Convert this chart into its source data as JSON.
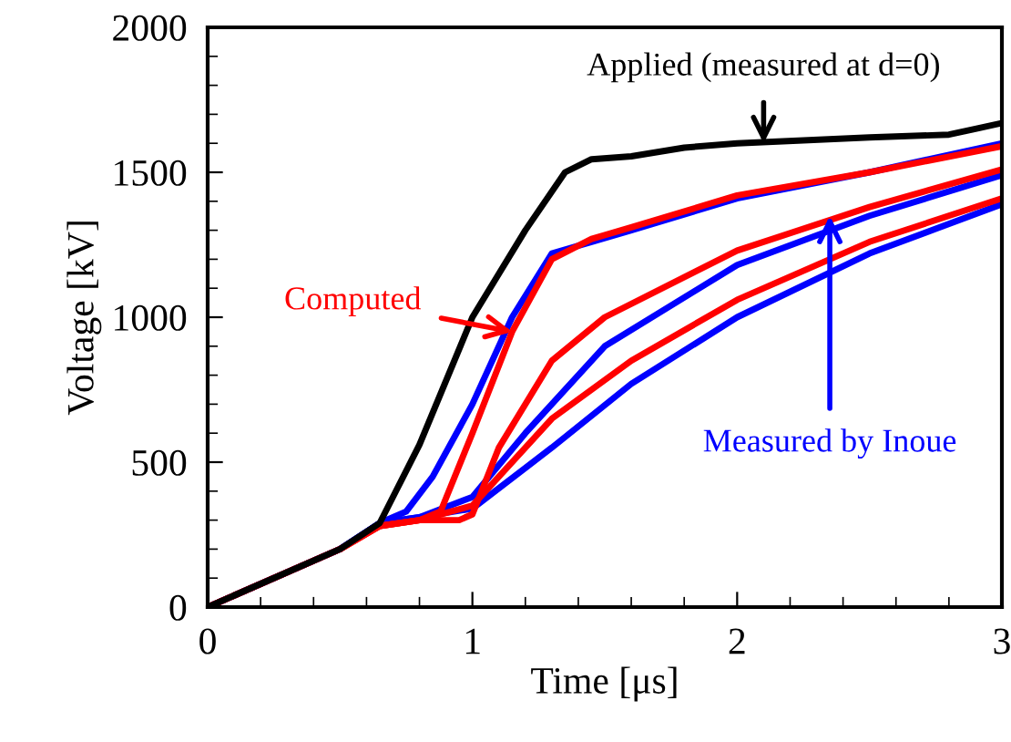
{
  "chart_data": {
    "type": "line",
    "xlabel": "Time [μs]",
    "ylabel": "Voltage [kV]",
    "xlim": [
      0,
      3
    ],
    "xticks": [
      0,
      1,
      2,
      3
    ],
    "ylim": [
      0,
      2000
    ],
    "yticks": [
      0,
      500,
      1000,
      1500,
      2000
    ],
    "grid": false,
    "legend": false,
    "marker": "none",
    "line_style": "solid",
    "series": [
      {
        "color": "#0000ff",
        "x": [
          0,
          0.5,
          0.65,
          0.75,
          0.85,
          1.0,
          1.15,
          1.3,
          1.45,
          1.6,
          2.0,
          2.5,
          3.0
        ],
        "values": [
          0,
          200,
          290,
          330,
          450,
          700,
          1000,
          1220,
          1260,
          1300,
          1410,
          1500,
          1600
        ]
      },
      {
        "color": "#0000ff",
        "x": [
          0,
          0.5,
          0.65,
          0.8,
          1.0,
          1.2,
          1.5,
          2.0,
          2.5,
          3.0
        ],
        "values": [
          0,
          200,
          290,
          310,
          380,
          600,
          900,
          1180,
          1350,
          1490
        ]
      },
      {
        "color": "#0000ff",
        "x": [
          0,
          0.5,
          0.65,
          0.8,
          1.0,
          1.3,
          1.6,
          2.0,
          2.5,
          3.0
        ],
        "values": [
          0,
          200,
          290,
          310,
          340,
          550,
          770,
          1000,
          1220,
          1390
        ]
      },
      {
        "color": "#ff0000",
        "x": [
          0,
          0.5,
          0.65,
          0.8,
          0.88,
          1.0,
          1.15,
          1.3,
          1.45,
          1.6,
          2.0,
          2.5,
          3.0
        ],
        "values": [
          0,
          200,
          280,
          300,
          330,
          600,
          950,
          1200,
          1270,
          1310,
          1420,
          1500,
          1590
        ]
      },
      {
        "color": "#ff0000",
        "x": [
          0,
          0.5,
          0.65,
          0.8,
          0.95,
          1.0,
          1.1,
          1.3,
          1.5,
          2.0,
          2.5,
          3.0
        ],
        "values": [
          0,
          200,
          280,
          300,
          300,
          320,
          550,
          850,
          1000,
          1230,
          1380,
          1510
        ]
      },
      {
        "color": "#ff0000",
        "x": [
          0,
          0.5,
          0.65,
          0.8,
          1.0,
          1.3,
          1.6,
          2.0,
          2.5,
          3.0
        ],
        "values": [
          0,
          200,
          280,
          300,
          350,
          650,
          850,
          1060,
          1260,
          1410
        ]
      },
      {
        "color": "#000000",
        "x": [
          0,
          0.5,
          0.65,
          0.8,
          1.0,
          1.2,
          1.35,
          1.45,
          1.6,
          1.8,
          2.0,
          2.5,
          2.8,
          2.9,
          3.0
        ],
        "values": [
          0,
          200,
          290,
          560,
          1000,
          1300,
          1500,
          1545,
          1555,
          1585,
          1600,
          1620,
          1630,
          1650,
          1670
        ]
      }
    ],
    "annotations": [
      {
        "text": "Applied (measured at d=0)",
        "x": 2.1,
        "y": 1600
      },
      {
        "text": "Computed",
        "x": 1.15,
        "y": 950
      },
      {
        "text": "Measured by Inoue",
        "x": 2.35,
        "y": 1350
      }
    ]
  }
}
